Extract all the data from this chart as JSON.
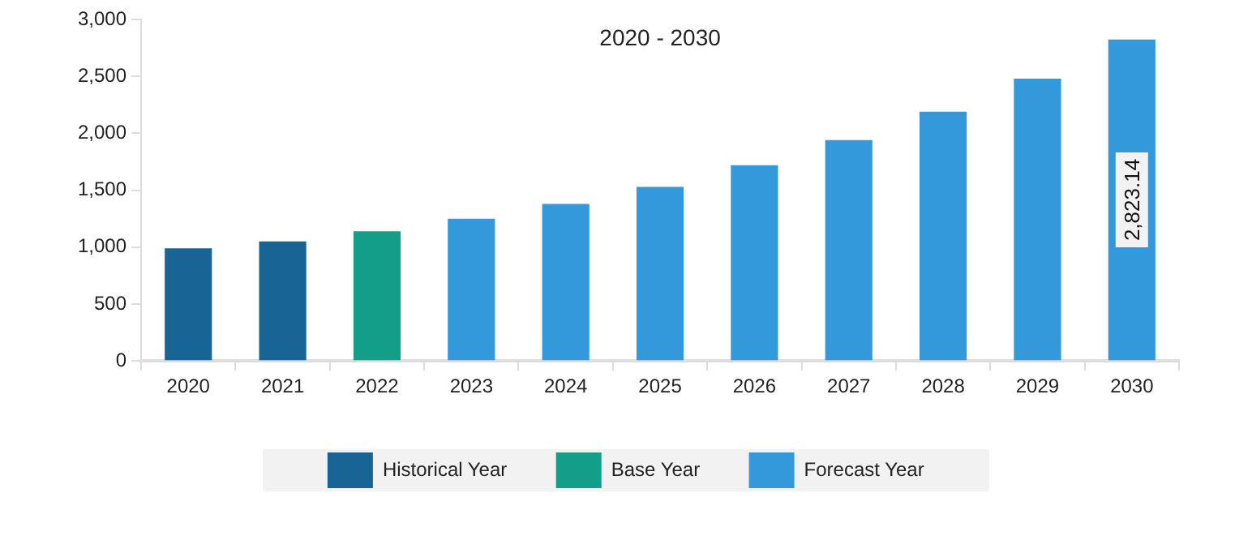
{
  "chart_data": {
    "type": "bar",
    "title": "2020 - 2030",
    "categories": [
      "2020",
      "2021",
      "2022",
      "2023",
      "2024",
      "2025",
      "2026",
      "2027",
      "2028",
      "2029",
      "2030"
    ],
    "series": [
      {
        "name": "Historical Year",
        "color": "#186494",
        "values": [
          990,
          1050,
          null,
          null,
          null,
          null,
          null,
          null,
          null,
          null,
          null
        ]
      },
      {
        "name": "Base Year",
        "color": "#129e89",
        "values": [
          null,
          null,
          1140,
          null,
          null,
          null,
          null,
          null,
          null,
          null,
          null
        ]
      },
      {
        "name": "Forecast Year",
        "color": "#3499da",
        "values": [
          null,
          null,
          null,
          1250,
          1380,
          1530,
          1720,
          1940,
          2190,
          2480,
          2823.14
        ],
        "value_labels": [
          null,
          null,
          null,
          null,
          null,
          null,
          null,
          null,
          null,
          null,
          "2,823.14"
        ]
      }
    ],
    "ylim": [
      0,
      3000
    ],
    "yticks": [
      0,
      500,
      {
        "value": 1000,
        "label": "1,000"
      },
      {
        "value": 1500,
        "label": "1,500"
      },
      {
        "value": 2000,
        "label": "2,000"
      },
      {
        "value": 2500,
        "label": "2,500"
      },
      {
        "value": 3000,
        "label": "3,000"
      }
    ],
    "grid": false,
    "legend": "bottom"
  }
}
